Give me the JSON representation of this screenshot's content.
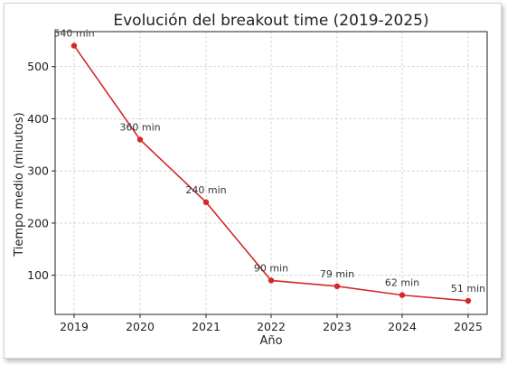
{
  "chart_data": {
    "type": "line",
    "title": "Evolución del breakout time (2019-2025)",
    "xlabel": "Año",
    "ylabel": "Tiempo medio (minutos)",
    "x": [
      "2019",
      "2020",
      "2021",
      "2022",
      "2023",
      "2024",
      "2025"
    ],
    "series": [
      {
        "values": [
          540,
          360,
          240,
          90,
          79,
          62,
          51
        ],
        "color": "#d62728"
      }
    ],
    "data_labels": [
      "540 min",
      "360 min",
      "240 min",
      "90 min",
      "79 min",
      "62 min",
      "51 min"
    ],
    "yticks": [
      100,
      200,
      300,
      400,
      500
    ],
    "ylim": [
      25,
      567
    ],
    "grid": true
  }
}
